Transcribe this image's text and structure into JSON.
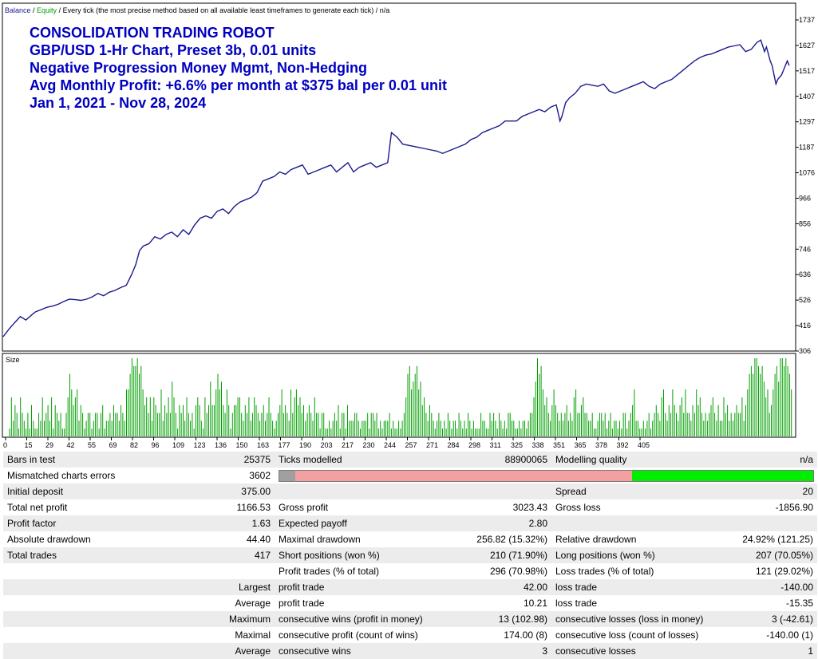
{
  "header": {
    "balance": "Balance",
    "sep1": " / ",
    "equity": "Equity",
    "rest": " / Every tick (the most precise method based on all available least timeframes to generate each tick) / n/a"
  },
  "title_lines": [
    "CONSOLIDATION TRADING ROBOT",
    "GBP/USD 1-Hr Chart, Preset 3b, 0.01 units",
    "Negative Progression Money Mgmt, Non-Hedging",
    "Avg Monthly Profit: +6.6% per month at $375 bal per 0.01 unit",
    "Jan 1, 2021 - Nov 28, 2024"
  ],
  "size_label": "Size",
  "colors": {
    "balance": "#1a1a8c",
    "equity": "#00a000",
    "size_bar": "#00a000",
    "title": "#0000c0",
    "quality_gray": "#a0a0a0",
    "quality_red": "#f4a0a0",
    "quality_green": "#00ee00"
  },
  "chart_data": {
    "type": "line",
    "series": [
      {
        "name": "Balance",
        "x": [
          0,
          3,
          6,
          9,
          12,
          15,
          17,
          20,
          23,
          26,
          29,
          32,
          35,
          38,
          41,
          44,
          47,
          50,
          53,
          56,
          59,
          62,
          65,
          68,
          70,
          72,
          74,
          77,
          80,
          83,
          86,
          89,
          92,
          95,
          98,
          101,
          104,
          107,
          110,
          113,
          116,
          119,
          122,
          125,
          128,
          131,
          134,
          137,
          140,
          143,
          146,
          149,
          152,
          155,
          158,
          161,
          164,
          167,
          170,
          173,
          176,
          179,
          182,
          185,
          188,
          191,
          194,
          197,
          200,
          203,
          205,
          208,
          211,
          214,
          217,
          220,
          223,
          226,
          229,
          232,
          235,
          238,
          241,
          244,
          247,
          250,
          253,
          256,
          259,
          262,
          265,
          268,
          271,
          274,
          277,
          280,
          283,
          286,
          289,
          292,
          294,
          295,
          296,
          297,
          299,
          302,
          305,
          308,
          311,
          314,
          317,
          320,
          323,
          326,
          329,
          332,
          335,
          338,
          341,
          344,
          347,
          350,
          353,
          356,
          359,
          362,
          365,
          368,
          371,
          374,
          377,
          380,
          383,
          386,
          389,
          392,
          395,
          398,
          400,
          402,
          403,
          404,
          405,
          406,
          407,
          408,
          409,
          411,
          412,
          413,
          414,
          415
        ],
        "values": [
          368,
          400,
          428,
          455,
          440,
          462,
          475,
          485,
          495,
          500,
          508,
          520,
          530,
          528,
          525,
          530,
          540,
          555,
          545,
          560,
          568,
          580,
          590,
          640,
          680,
          740,
          760,
          770,
          800,
          790,
          810,
          820,
          800,
          830,
          810,
          850,
          880,
          890,
          880,
          910,
          920,
          900,
          930,
          950,
          960,
          970,
          990,
          1040,
          1050,
          1060,
          1080,
          1070,
          1090,
          1100,
          1110,
          1070,
          1080,
          1090,
          1100,
          1110,
          1080,
          1100,
          1120,
          1080,
          1100,
          1110,
          1120,
          1100,
          1110,
          1120,
          1250,
          1230,
          1200,
          1195,
          1190,
          1185,
          1180,
          1175,
          1170,
          1160,
          1170,
          1180,
          1190,
          1200,
          1220,
          1230,
          1250,
          1260,
          1270,
          1280,
          1300,
          1300,
          1300,
          1320,
          1330,
          1340,
          1350,
          1340,
          1360,
          1370,
          1300,
          1320,
          1350,
          1380,
          1400,
          1420,
          1450,
          1460,
          1455,
          1450,
          1460,
          1430,
          1420,
          1430,
          1440,
          1450,
          1460,
          1470,
          1450,
          1440,
          1460,
          1470,
          1480,
          1500,
          1520,
          1540,
          1560,
          1575,
          1585,
          1590,
          1600,
          1610,
          1620,
          1625,
          1630,
          1600,
          1610,
          1640,
          1650,
          1600,
          1620,
          1590,
          1560,
          1540,
          1500,
          1460,
          1480,
          1500,
          1520,
          1540,
          1560,
          1540
        ]
      }
    ],
    "y_ticks": [
      "1737",
      "1627",
      "1517",
      "1407",
      "1297",
      "1187",
      "1076",
      "966",
      "856",
      "746",
      "636",
      "526",
      "416",
      "306"
    ],
    "ylim": [
      306,
      1737
    ],
    "x_ticks": [
      "0",
      "15",
      "29",
      "42",
      "55",
      "69",
      "82",
      "96",
      "109",
      "123",
      "136",
      "150",
      "163",
      "177",
      "190",
      "203",
      "217",
      "230",
      "244",
      "257",
      "271",
      "284",
      "298",
      "311",
      "325",
      "338",
      "351",
      "365",
      "378",
      "392",
      "405"
    ],
    "xlim": [
      0,
      418
    ],
    "size_panel": {
      "label": "Size",
      "values": [
        1,
        5,
        2,
        4,
        3,
        1,
        5,
        3,
        2,
        1,
        3,
        1,
        4,
        2,
        1,
        1,
        3,
        2,
        5,
        2,
        3,
        4,
        2,
        5,
        1,
        4,
        3,
        2,
        3,
        1,
        1,
        3,
        5,
        8,
        6,
        4,
        5,
        6,
        2,
        4,
        3,
        1,
        2,
        3,
        3,
        1,
        2,
        3,
        3,
        1,
        3,
        4,
        1,
        2,
        2,
        3,
        2,
        4,
        3,
        3,
        2,
        4,
        3,
        2,
        6,
        6,
        8,
        10,
        9,
        9,
        10,
        8,
        9,
        6,
        4,
        5,
        3,
        5,
        2,
        5,
        4,
        3,
        3,
        6,
        2,
        4,
        3,
        5,
        3,
        7,
        5,
        3,
        1,
        4,
        3,
        4,
        2,
        5,
        3,
        2,
        3,
        1,
        4,
        5,
        4,
        2,
        1,
        5,
        3,
        4,
        7,
        4,
        4,
        6,
        8,
        6,
        7,
        4,
        3,
        6,
        4,
        1,
        3,
        4,
        4,
        5,
        5,
        3,
        2,
        4,
        3,
        5,
        2,
        3,
        5,
        4,
        3,
        2,
        3,
        4,
        2,
        3,
        5,
        3,
        2,
        1,
        2,
        3,
        4,
        6,
        3,
        4,
        3,
        2,
        6,
        3,
        5,
        6,
        4,
        5,
        3,
        4,
        2,
        3,
        4,
        3,
        2,
        5,
        3,
        3,
        1,
        3,
        3,
        1,
        1,
        2,
        1,
        2,
        3,
        2,
        4,
        1,
        3,
        3,
        1,
        4,
        2,
        2,
        2,
        3,
        3,
        2,
        1,
        2,
        2,
        2,
        3,
        1,
        3,
        3,
        2,
        3,
        1,
        2,
        1,
        2,
        2,
        2,
        3,
        1,
        2,
        1,
        1,
        2,
        1,
        2,
        3,
        5,
        8,
        9,
        6,
        7,
        8,
        9,
        6,
        7,
        4,
        5,
        3,
        2,
        4,
        3,
        2,
        1,
        2,
        3,
        2,
        1,
        2,
        1,
        3,
        2,
        1,
        2,
        2,
        1,
        3,
        2,
        1,
        2,
        1,
        3,
        2,
        1,
        2,
        1,
        1,
        1,
        3,
        2,
        2,
        1,
        1,
        3,
        2,
        3,
        2,
        1,
        3,
        2,
        1,
        2,
        1,
        3,
        3,
        2,
        2,
        1,
        1,
        2,
        1,
        2,
        2,
        1,
        2,
        3,
        3,
        5,
        7,
        10,
        8,
        9,
        6,
        4,
        5,
        3,
        2,
        4,
        6,
        4,
        3,
        2,
        3,
        2,
        3,
        4,
        2,
        3,
        2,
        5,
        6,
        3,
        3,
        4,
        5,
        3,
        3,
        2,
        2,
        3,
        1,
        1,
        2,
        3,
        3,
        2,
        3,
        1,
        2,
        3,
        1,
        2,
        2,
        1,
        2,
        1,
        3,
        3,
        1,
        2,
        3,
        4,
        6,
        2,
        2,
        1,
        1,
        2,
        1,
        2,
        3,
        1,
        2,
        3,
        4,
        3,
        2,
        5,
        6,
        3,
        2,
        4,
        3,
        6,
        4,
        3,
        2,
        4,
        5,
        3,
        6,
        3,
        3,
        2,
        4,
        3,
        6,
        4,
        5,
        3,
        2,
        3,
        2,
        3,
        4,
        5,
        3,
        2,
        4,
        2,
        2,
        5,
        3,
        4,
        2,
        3,
        2,
        3,
        4,
        3,
        3,
        5,
        2,
        4,
        6,
        8,
        9,
        8,
        10,
        10,
        9,
        8,
        9,
        7,
        5,
        6,
        3,
        4,
        6,
        8,
        9,
        7,
        10,
        10,
        9,
        10,
        9,
        8,
        6
      ]
    }
  },
  "stats": {
    "r1": {
      "k1": "Bars in test",
      "v1": "25375",
      "k2": "Ticks modelled",
      "v2": "88900065",
      "k3": "Modelling quality",
      "v3": "n/a"
    },
    "r2": {
      "k1": "Mismatched charts errors",
      "v1": "3602"
    },
    "r3": {
      "k1": "Initial deposit",
      "v1": "375.00",
      "k3": "Spread",
      "v3": "20"
    },
    "r4": {
      "k1": "Total net profit",
      "v1": "1166.53",
      "k2": "Gross profit",
      "v2": "3023.43",
      "k3": "Gross loss",
      "v3": "-1856.90"
    },
    "r5": {
      "k1": "Profit factor",
      "v1": "1.63",
      "k2": "Expected payoff",
      "v2": "2.80"
    },
    "r6": {
      "k1": "Absolute drawdown",
      "v1": "44.40",
      "k2": "Maximal drawdown",
      "v2": "256.82 (15.32%)",
      "k3": "Relative drawdown",
      "v3": "24.92% (121.25)"
    },
    "r7": {
      "k1": "Total trades",
      "v1": "417",
      "k2": "Short positions (won %)",
      "v2": "210 (71.90%)",
      "k3": "Long positions (won %)",
      "v3": "207 (70.05%)"
    },
    "r8": {
      "k2": "Profit trades (% of total)",
      "v2": "296 (70.98%)",
      "k3": "Loss trades (% of total)",
      "v3": "121 (29.02%)"
    },
    "r9": {
      "k1": "Largest",
      "k2": "profit trade",
      "v2": "42.00",
      "k3": "loss trade",
      "v3": "-140.00"
    },
    "r10": {
      "k1": "Average",
      "k2": "profit trade",
      "v2": "10.21",
      "k3": "loss trade",
      "v3": "-15.35"
    },
    "r11": {
      "k1": "Maximum",
      "k2": "consecutive wins (profit in money)",
      "v2": "13 (102.98)",
      "k3": "consecutive losses (loss in money)",
      "v3": "3 (-42.61)"
    },
    "r12": {
      "k1": "Maximal",
      "k2": "consecutive profit (count of wins)",
      "v2": "174.00 (8)",
      "k3": "consecutive loss (count of losses)",
      "v3": "-140.00 (1)"
    },
    "r13": {
      "k1": "Average",
      "k2": "consecutive wins",
      "v2": "3",
      "k3": "consecutive losses",
      "v3": "1"
    }
  },
  "quality_bar": {
    "gray": 0.03,
    "red": 0.63,
    "green": 0.34
  }
}
